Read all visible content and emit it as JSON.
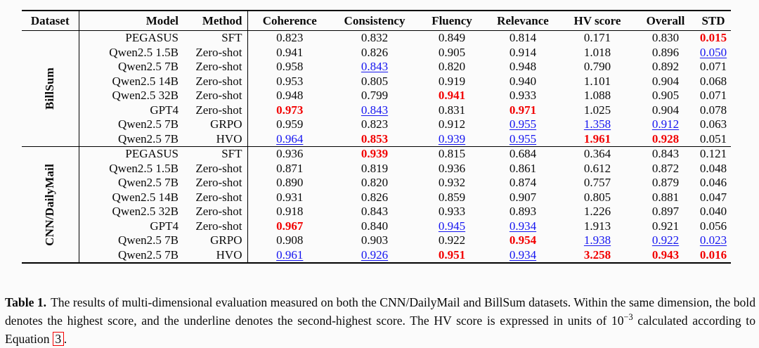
{
  "colors": {
    "best": "#f20000",
    "second_best": "#1414f0",
    "rule": "#000000",
    "background": "#fbfbfb"
  },
  "table": {
    "headers": [
      "Dataset",
      "Model",
      "Method",
      "Coherence",
      "Consistency",
      "Fluency",
      "Relevance",
      "HV score",
      "Overall",
      "STD"
    ],
    "style_legend": {
      "b": "highest-score (bold red)",
      "u": "second-highest (blue underline)"
    },
    "sections": [
      {
        "dataset": "BillSum",
        "rows": [
          {
            "model": "PEGASUS",
            "method": "SFT",
            "cells": [
              [
                "0.823",
                ""
              ],
              [
                "0.832",
                ""
              ],
              [
                "0.849",
                ""
              ],
              [
                "0.814",
                ""
              ],
              [
                "0.171",
                ""
              ],
              [
                "0.830",
                ""
              ],
              [
                "0.015",
                "b"
              ]
            ]
          },
          {
            "model": "Qwen2.5 1.5B",
            "method": "Zero-shot",
            "cells": [
              [
                "0.941",
                ""
              ],
              [
                "0.826",
                ""
              ],
              [
                "0.905",
                ""
              ],
              [
                "0.914",
                ""
              ],
              [
                "1.018",
                ""
              ],
              [
                "0.896",
                ""
              ],
              [
                "0.050",
                "u"
              ]
            ]
          },
          {
            "model": "Qwen2.5 7B",
            "method": "Zero-shot",
            "cells": [
              [
                "0.958",
                ""
              ],
              [
                "0.843",
                "u"
              ],
              [
                "0.820",
                ""
              ],
              [
                "0.948",
                ""
              ],
              [
                "0.790",
                ""
              ],
              [
                "0.892",
                ""
              ],
              [
                "0.071",
                ""
              ]
            ]
          },
          {
            "model": "Qwen2.5 14B",
            "method": "Zero-shot",
            "cells": [
              [
                "0.953",
                ""
              ],
              [
                "0.805",
                ""
              ],
              [
                "0.919",
                ""
              ],
              [
                "0.940",
                ""
              ],
              [
                "1.101",
                ""
              ],
              [
                "0.904",
                ""
              ],
              [
                "0.068",
                ""
              ]
            ]
          },
          {
            "model": "Qwen2.5 32B",
            "method": "Zero-shot",
            "cells": [
              [
                "0.948",
                ""
              ],
              [
                "0.799",
                ""
              ],
              [
                "0.941",
                "b"
              ],
              [
                "0.933",
                ""
              ],
              [
                "1.088",
                ""
              ],
              [
                "0.905",
                ""
              ],
              [
                "0.071",
                ""
              ]
            ]
          },
          {
            "model": "GPT4",
            "method": "Zero-shot",
            "cells": [
              [
                "0.973",
                "b"
              ],
              [
                "0.843",
                "u"
              ],
              [
                "0.831",
                ""
              ],
              [
                "0.971",
                "b"
              ],
              [
                "1.025",
                ""
              ],
              [
                "0.904",
                ""
              ],
              [
                "0.078",
                ""
              ]
            ]
          },
          {
            "model": "Qwen2.5 7B",
            "method": "GRPO",
            "cells": [
              [
                "0.959",
                ""
              ],
              [
                "0.823",
                ""
              ],
              [
                "0.912",
                ""
              ],
              [
                "0.955",
                "u"
              ],
              [
                "1.358",
                "u"
              ],
              [
                "0.912",
                "u"
              ],
              [
                "0.063",
                ""
              ]
            ]
          },
          {
            "model": "Qwen2.5 7B",
            "method": "HVO",
            "cells": [
              [
                "0.964",
                "u"
              ],
              [
                "0.853",
                "b"
              ],
              [
                "0.939",
                "u"
              ],
              [
                "0.955",
                "u"
              ],
              [
                "1.961",
                "b"
              ],
              [
                "0.928",
                "b"
              ],
              [
                "0.051",
                ""
              ]
            ]
          }
        ]
      },
      {
        "dataset": "CNN/DailyMail",
        "rows": [
          {
            "model": "PEGASUS",
            "method": "SFT",
            "cells": [
              [
                "0.936",
                ""
              ],
              [
                "0.939",
                "b"
              ],
              [
                "0.815",
                ""
              ],
              [
                "0.684",
                ""
              ],
              [
                "0.364",
                ""
              ],
              [
                "0.843",
                ""
              ],
              [
                "0.121",
                ""
              ]
            ]
          },
          {
            "model": "Qwen2.5 1.5B",
            "method": "Zero-shot",
            "cells": [
              [
                "0.871",
                ""
              ],
              [
                "0.819",
                ""
              ],
              [
                "0.936",
                ""
              ],
              [
                "0.861",
                ""
              ],
              [
                "0.612",
                ""
              ],
              [
                "0.872",
                ""
              ],
              [
                "0.048",
                ""
              ]
            ]
          },
          {
            "model": "Qwen2.5 7B",
            "method": "Zero-shot",
            "cells": [
              [
                "0.890",
                ""
              ],
              [
                "0.820",
                ""
              ],
              [
                "0.932",
                ""
              ],
              [
                "0.874",
                ""
              ],
              [
                "0.757",
                ""
              ],
              [
                "0.879",
                ""
              ],
              [
                "0.046",
                ""
              ]
            ]
          },
          {
            "model": "Qwen2.5 14B",
            "method": "Zero-shot",
            "cells": [
              [
                "0.931",
                ""
              ],
              [
                "0.826",
                ""
              ],
              [
                "0.859",
                ""
              ],
              [
                "0.907",
                ""
              ],
              [
                "0.805",
                ""
              ],
              [
                "0.881",
                ""
              ],
              [
                "0.047",
                ""
              ]
            ]
          },
          {
            "model": "Qwen2.5 32B",
            "method": "Zero-shot",
            "cells": [
              [
                "0.918",
                ""
              ],
              [
                "0.843",
                ""
              ],
              [
                "0.933",
                ""
              ],
              [
                "0.893",
                ""
              ],
              [
                "1.226",
                ""
              ],
              [
                "0.897",
                ""
              ],
              [
                "0.040",
                ""
              ]
            ]
          },
          {
            "model": "GPT4",
            "method": "Zero-shot",
            "cells": [
              [
                "0.967",
                "b"
              ],
              [
                "0.840",
                ""
              ],
              [
                "0.945",
                "u"
              ],
              [
                "0.934",
                "u"
              ],
              [
                "1.913",
                ""
              ],
              [
                "0.921",
                ""
              ],
              [
                "0.056",
                ""
              ]
            ]
          },
          {
            "model": "Qwen2.5 7B",
            "method": "GRPO",
            "cells": [
              [
                "0.908",
                ""
              ],
              [
                "0.903",
                ""
              ],
              [
                "0.922",
                ""
              ],
              [
                "0.954",
                "b"
              ],
              [
                "1.938",
                "u"
              ],
              [
                "0.922",
                "u"
              ],
              [
                "0.023",
                "u"
              ]
            ]
          },
          {
            "model": "Qwen2.5 7B",
            "method": "HVO",
            "cells": [
              [
                "0.961",
                "u"
              ],
              [
                "0.926",
                "u"
              ],
              [
                "0.951",
                "b"
              ],
              [
                "0.934",
                "u"
              ],
              [
                "3.258",
                "b"
              ],
              [
                "0.943",
                "b"
              ],
              [
                "0.016",
                "b"
              ]
            ]
          }
        ]
      }
    ]
  },
  "caption": {
    "label": "Table 1.",
    "text_1": "The results of multi-dimensional evaluation measured on both the CNN/DailyMail and BillSum datasets. Within the same dimension, the bold denotes the highest score, and the underline denotes the second-highest score. The HV score is expressed in units of 10",
    "superscript": "−3",
    "text_2": " calculated according to Equation ",
    "equation_ref": "3",
    "period": "."
  }
}
